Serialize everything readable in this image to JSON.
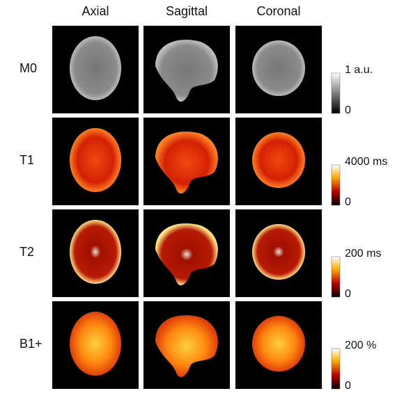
{
  "columns": [
    "Axial",
    "Sagittal",
    "Coronal"
  ],
  "rows": [
    {
      "label": "M0",
      "scale_max": "1 a.u.",
      "scale_min": "0"
    },
    {
      "label": "T1",
      "scale_max": "4000 ms",
      "scale_min": "0"
    },
    {
      "label": "T2",
      "scale_max": "200 ms",
      "scale_min": "0"
    },
    {
      "label": "B1+",
      "scale_max": "200 %",
      "scale_min": "0"
    }
  ]
}
